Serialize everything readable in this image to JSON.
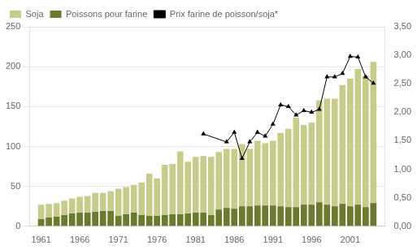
{
  "chart_data": {
    "type": "bar",
    "x": [
      1961,
      1962,
      1963,
      1964,
      1965,
      1966,
      1967,
      1968,
      1969,
      1970,
      1971,
      1972,
      1973,
      1974,
      1975,
      1976,
      1977,
      1978,
      1979,
      1980,
      1981,
      1982,
      1983,
      1984,
      1985,
      1986,
      1987,
      1988,
      1989,
      1990,
      1991,
      1992,
      1993,
      1994,
      1995,
      1996,
      1997,
      1998,
      1999,
      2000,
      2001,
      2002,
      2003,
      2004
    ],
    "series": [
      {
        "name": "Soja",
        "color": "#c8cc8a",
        "values": [
          27,
          28,
          29,
          32,
          35,
          37,
          38,
          42,
          42,
          44,
          47,
          49,
          52,
          55,
          66,
          60,
          77,
          78,
          94,
          81,
          87,
          88,
          87,
          93,
          97,
          97,
          103,
          97,
          107,
          104,
          107,
          117,
          122,
          136,
          127,
          130,
          158,
          160,
          160,
          177,
          185,
          197,
          189,
          206
        ]
      },
      {
        "name": "Poissons pour farine",
        "color": "#6b7a2e",
        "values": [
          9,
          11,
          12,
          14,
          16,
          17,
          17,
          18,
          19,
          19,
          13,
          15,
          17,
          14,
          13,
          13,
          14,
          15,
          15,
          16,
          17,
          17,
          14,
          21,
          23,
          22,
          25,
          25,
          26,
          26,
          26,
          25,
          24,
          24,
          27,
          27,
          30,
          27,
          25,
          28,
          25,
          27,
          24,
          29
        ]
      },
      {
        "name": "Prix farine de poisson/soja*",
        "type": "line",
        "color": "#000000",
        "marker": "triangle",
        "axis": "y2",
        "x": [
          1982,
          1985,
          1986,
          1987,
          1988,
          1989,
          1990,
          1991,
          1992,
          1993,
          1994,
          1995,
          1996,
          1997,
          1998,
          1999,
          2000,
          2001,
          2002,
          2003,
          2004
        ],
        "values": [
          1.62,
          1.48,
          1.65,
          1.19,
          1.48,
          1.65,
          1.58,
          1.79,
          2.13,
          2.1,
          1.95,
          2.03,
          2.0,
          2.05,
          2.62,
          2.62,
          2.68,
          2.98,
          2.97,
          2.62,
          2.51
        ]
      }
    ],
    "xlim": [
      1959.5,
      2005.5
    ],
    "xticks": [
      1961,
      1966,
      1971,
      1976,
      1981,
      1986,
      1991,
      1996,
      2001
    ],
    "ylim": [
      0,
      250
    ],
    "yticks": [
      0,
      50,
      100,
      150,
      200,
      250
    ],
    "y2lim": [
      0.0,
      3.5
    ],
    "y2ticks": [
      {
        "value": 0.0,
        "label": "0,00"
      },
      {
        "value": 0.5,
        "label": "0,50"
      },
      {
        "value": 1.0,
        "label": "1,00"
      },
      {
        "value": 1.5,
        "label": "1,50"
      },
      {
        "value": 2.0,
        "label": "2,00"
      },
      {
        "value": 2.5,
        "label": "2,50"
      },
      {
        "value": 3.0,
        "label": "3,00"
      },
      {
        "value": 3.5,
        "label": "3,50"
      }
    ],
    "grid": "y",
    "legend": "upper left"
  }
}
